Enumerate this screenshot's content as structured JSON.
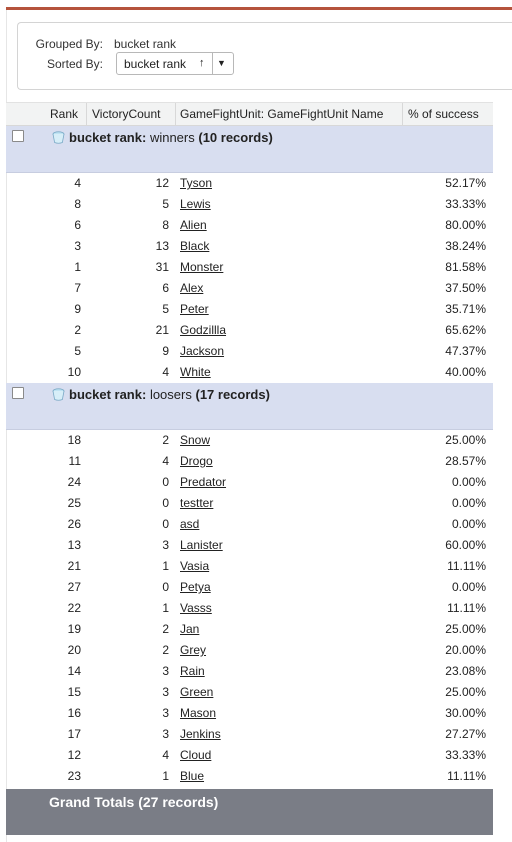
{
  "grouping": {
    "grouped_by_label": "Grouped By:",
    "grouped_by_value": "bucket rank",
    "sorted_by_label": "Sorted By:",
    "sorted_by_value": "bucket rank",
    "sort_direction": "↑",
    "dropdown_icon": "▼"
  },
  "columns": [
    "Rank",
    "VictoryCount",
    "GameFightUnit: GameFightUnit Name",
    "% of success"
  ],
  "groups": [
    {
      "label_bold": "bucket rank:",
      "label_value": "winners",
      "label_count": "(10 records)",
      "rows": [
        {
          "rank": "4",
          "victory": "12",
          "name": "Tyson",
          "pct": "52.17%"
        },
        {
          "rank": "8",
          "victory": "5",
          "name": "Lewis",
          "pct": "33.33%"
        },
        {
          "rank": "6",
          "victory": "8",
          "name": "Alien",
          "pct": "80.00%"
        },
        {
          "rank": "3",
          "victory": "13",
          "name": "Black",
          "pct": "38.24%"
        },
        {
          "rank": "1",
          "victory": "31",
          "name": "Monster",
          "pct": "81.58%"
        },
        {
          "rank": "7",
          "victory": "6",
          "name": "Alex",
          "pct": "37.50%"
        },
        {
          "rank": "9",
          "victory": "5",
          "name": "Peter",
          "pct": "35.71%"
        },
        {
          "rank": "2",
          "victory": "21",
          "name": "Godzillla",
          "pct": "65.62%"
        },
        {
          "rank": "5",
          "victory": "9",
          "name": "Jackson",
          "pct": "47.37%"
        },
        {
          "rank": "10",
          "victory": "4",
          "name": "White",
          "pct": "40.00%"
        }
      ]
    },
    {
      "label_bold": "bucket rank:",
      "label_value": "loosers",
      "label_count": "(17 records)",
      "rows": [
        {
          "rank": "18",
          "victory": "2",
          "name": "Snow",
          "pct": "25.00%"
        },
        {
          "rank": "11",
          "victory": "4",
          "name": "Drogo",
          "pct": "28.57%"
        },
        {
          "rank": "24",
          "victory": "0",
          "name": "Predator",
          "pct": "0.00%"
        },
        {
          "rank": "25",
          "victory": "0",
          "name": "testter",
          "pct": "0.00%"
        },
        {
          "rank": "26",
          "victory": "0",
          "name": "asd",
          "pct": "0.00%"
        },
        {
          "rank": "13",
          "victory": "3",
          "name": "Lanister",
          "pct": "60.00%"
        },
        {
          "rank": "21",
          "victory": "1",
          "name": "Vasia",
          "pct": "11.11%"
        },
        {
          "rank": "27",
          "victory": "0",
          "name": "Petya",
          "pct": "0.00%"
        },
        {
          "rank": "22",
          "victory": "1",
          "name": "Vasss",
          "pct": "11.11%"
        },
        {
          "rank": "19",
          "victory": "2",
          "name": "Jan",
          "pct": "25.00%"
        },
        {
          "rank": "20",
          "victory": "2",
          "name": "Grey",
          "pct": "20.00%"
        },
        {
          "rank": "14",
          "victory": "3",
          "name": "Rain",
          "pct": "23.08%"
        },
        {
          "rank": "15",
          "victory": "3",
          "name": "Green",
          "pct": "25.00%"
        },
        {
          "rank": "16",
          "victory": "3",
          "name": "Mason",
          "pct": "30.00%"
        },
        {
          "rank": "17",
          "victory": "3",
          "name": "Jenkins",
          "pct": "27.27%"
        },
        {
          "rank": "12",
          "victory": "4",
          "name": "Cloud",
          "pct": "33.33%"
        },
        {
          "rank": "23",
          "victory": "1",
          "name": "Blue",
          "pct": "11.11%"
        }
      ]
    }
  ],
  "grand_totals": "Grand Totals (27 records)",
  "colors": {
    "accent_rule": "#b5533c",
    "group_header_bg": "#d8def0",
    "totals_bg": "#7a7d86",
    "column_header_bg": "#f2f3f3"
  },
  "icons": {
    "group_icon": "bucket-icon"
  }
}
